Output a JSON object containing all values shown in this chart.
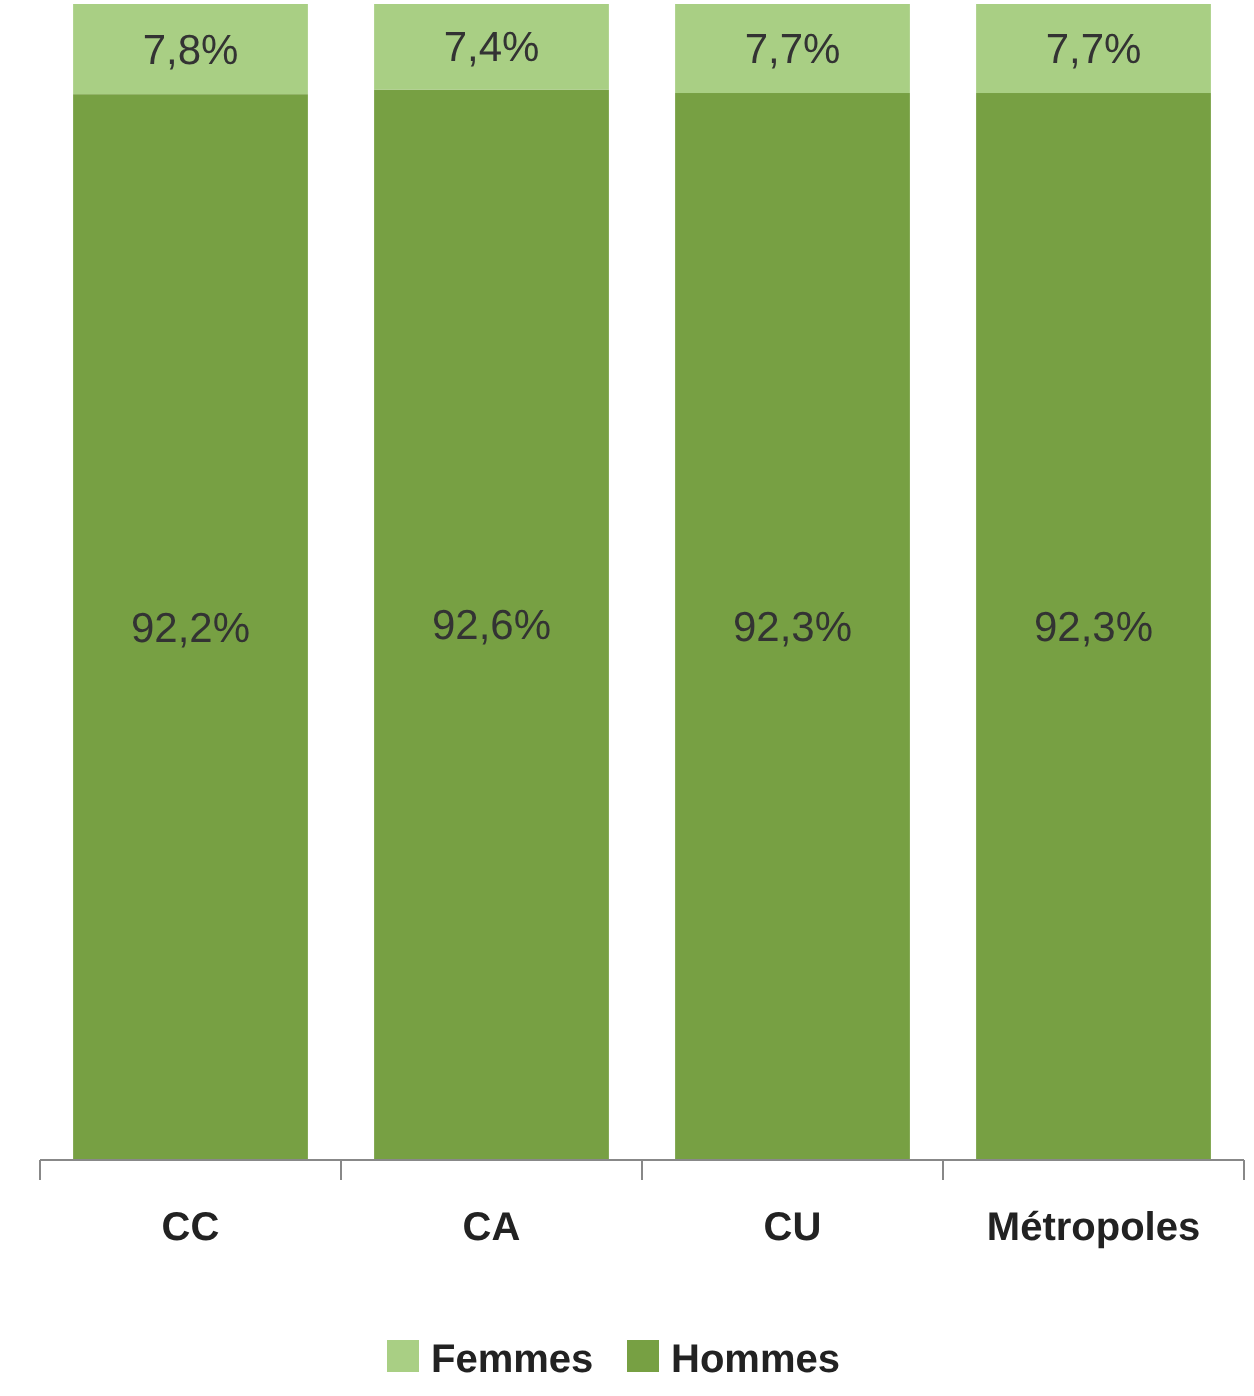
{
  "chart_data": {
    "type": "bar",
    "stacked": true,
    "categories": [
      "CC",
      "CA",
      "CU",
      "Métropoles"
    ],
    "ylim": [
      0,
      100
    ],
    "legend": "bottom",
    "series": [
      {
        "name": "Hommes",
        "color": "#77a043",
        "values": [
          92.2,
          92.6,
          92.3,
          92.3
        ],
        "value_labels": [
          "92,2%",
          "92,6%",
          "92,3%",
          "92,3%"
        ]
      },
      {
        "name": "Femmes",
        "color": "#a9cf84",
        "values": [
          7.8,
          7.4,
          7.7,
          7.7
        ],
        "value_labels": [
          "7,8%",
          "7,4%",
          "7,7%",
          "7,7%"
        ]
      }
    ]
  }
}
